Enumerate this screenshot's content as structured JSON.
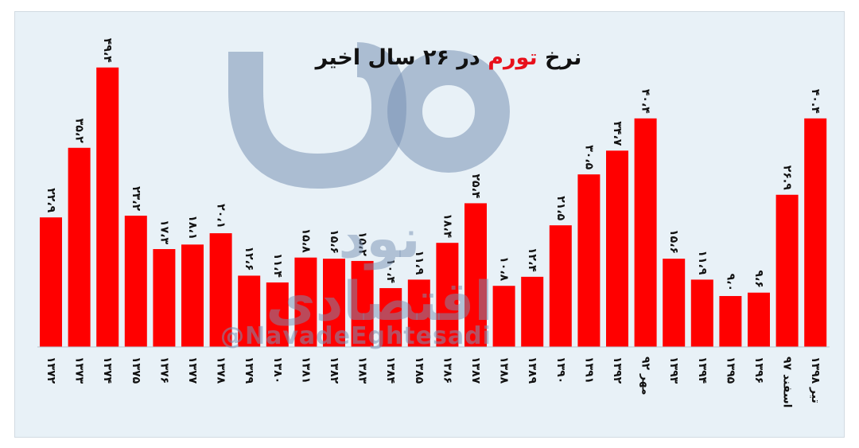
{
  "title": {
    "prefix": "نرخ",
    "accent": "تورم",
    "suffix": "در ۲۶ سال اخیر",
    "accent_color": "#e8101b"
  },
  "watermark": {
    "logo": "نود اقتصادی",
    "handle": "@NavadeEghtesadi"
  },
  "chart_data": {
    "type": "bar",
    "bar_color": "#ff0000",
    "ylim": [
      0,
      55
    ],
    "grid": false,
    "legend": "none",
    "categories": [
      "۱۳۷۲",
      "۱۳۷۳",
      "۱۳۷۴",
      "۱۳۷۵",
      "۱۳۷۶",
      "۱۳۷۷",
      "۱۳۷۸",
      "۱۳۷۹",
      "۱۳۸۰",
      "۱۳۸۱",
      "۱۳۸۲",
      "۱۳۸۳",
      "۱۳۸۴",
      "۱۳۸۵",
      "۱۳۸۶",
      "۱۳۸۷",
      "۱۳۸۸",
      "۱۳۸۹",
      "۱۳۹۰",
      "۱۳۹۱",
      "۱۳۹۲",
      "مهر ۹۲",
      "۱۳۹۳",
      "۱۳۹۴",
      "۱۳۹۵",
      "۱۳۹۶",
      "اسفند ۹۷",
      "تیر ۱۳۹۸"
    ],
    "values": [
      22.9,
      35.2,
      49.4,
      23.2,
      17.3,
      18.1,
      20.1,
      12.6,
      11.4,
      15.8,
      15.6,
      15.2,
      10.4,
      11.9,
      18.4,
      25.4,
      10.8,
      12.4,
      21.5,
      30.5,
      34.7,
      40.4,
      15.6,
      11.9,
      9.0,
      9.6,
      26.9,
      40.4
    ],
    "value_labels": [
      "۲۲،۹",
      "۳۵،۲",
      "۴۹،۴",
      "۲۳،۲",
      "۱۷،۳",
      "۱۸،۱",
      "۲۰،۱",
      "۱۲،۶",
      "۱۱،۴",
      "۱۵،۸",
      "۱۵،۶",
      "۱۵،۲",
      "۱۰،۴",
      "۱۱،۹",
      "۱۸،۴",
      "۲۵،۴",
      "۱۰،۸",
      "۱۲،۴",
      "۲۱،۵",
      "۳۰،۵",
      "۳۴،۷",
      "۴۰،۴",
      "۱۵،۶",
      "۱۱،۹",
      "۹،۰",
      "۹،۶",
      "۲۶.۹",
      "۴۰.۴"
    ],
    "xlabel": "",
    "ylabel": ""
  }
}
